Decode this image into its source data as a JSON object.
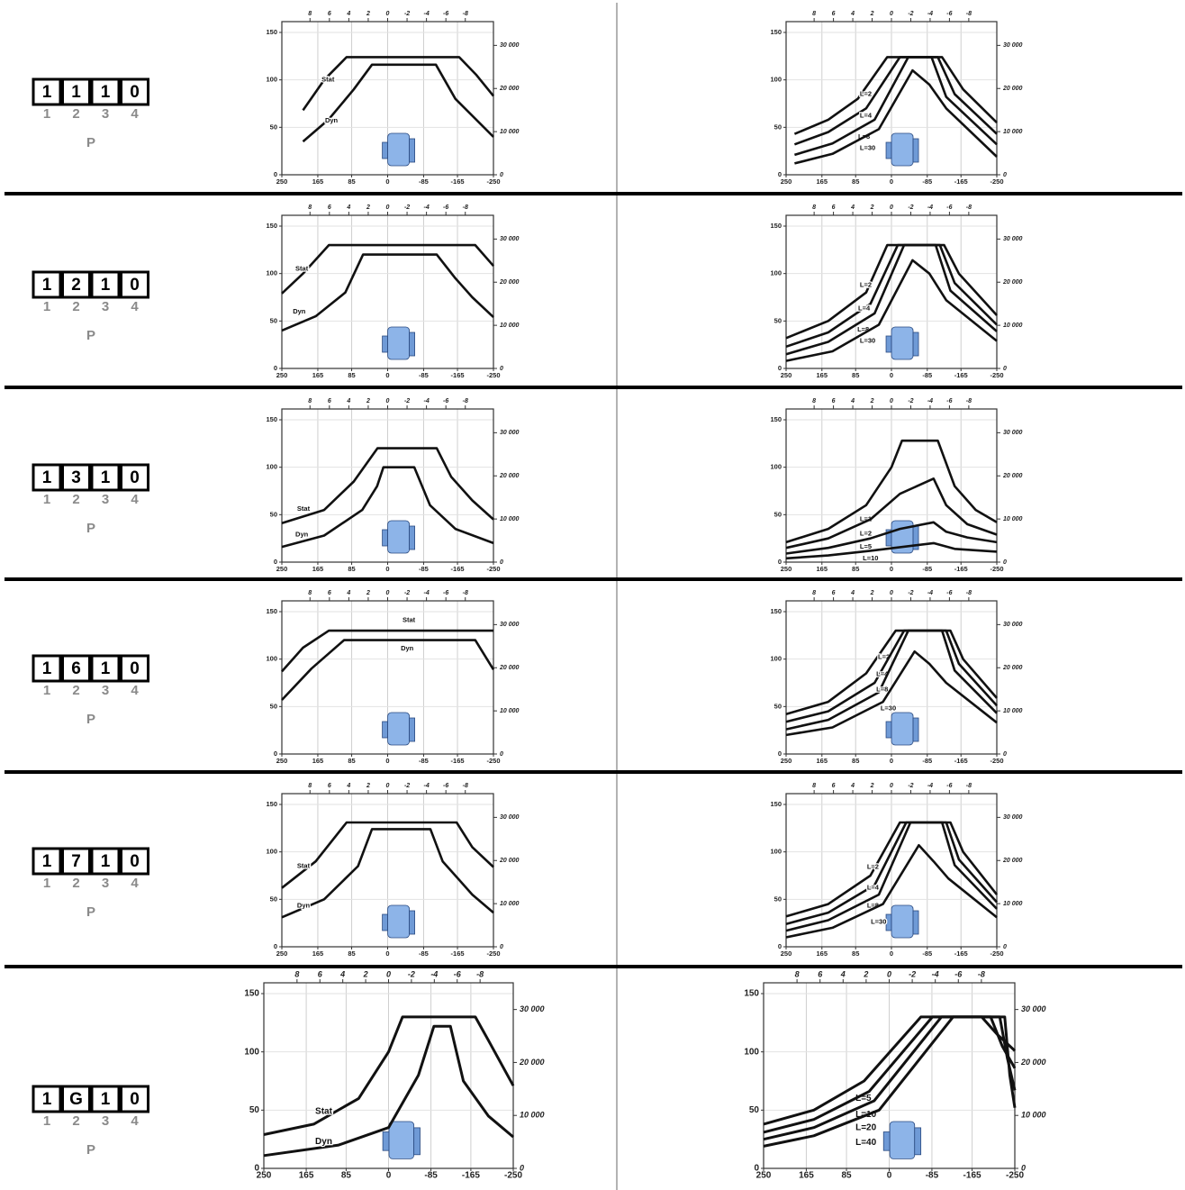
{
  "axes": {
    "xlim": [
      250,
      -250
    ],
    "xticks": [
      250,
      165,
      85,
      0,
      -85,
      -165,
      -250
    ],
    "x2lim": [
      10.9,
      -10.9
    ],
    "x2ticks": [
      8,
      6,
      4,
      2,
      0,
      -2,
      -4,
      -6,
      -8
    ],
    "ylim": [
      0,
      150
    ],
    "yticks": [
      0,
      50,
      100,
      150
    ],
    "y2lim": [
      0,
      33000
    ],
    "y2ticks": [
      0,
      {
        "value": 10000,
        "label": "10 000"
      },
      {
        "value": 20000,
        "label": "20 000"
      },
      {
        "value": 30000,
        "label": "30 000"
      }
    ],
    "grid": true
  },
  "positions": [
    "1",
    "2",
    "3",
    "4"
  ],
  "rows": [
    {
      "code": [
        "1",
        "1",
        "1",
        "0"
      ],
      "p": "P",
      "charts": [
        {
          "type": "line",
          "series": [
            {
              "name": "Stat",
              "color": "#111111",
              "x": [
                200,
                150,
                97,
                -169,
                -210,
                -250
              ],
              "values": [
                68,
                100,
                124,
                124,
                105,
                83
              ]
            },
            {
              "name": "Dyn",
              "color": "#111111",
              "x": [
                200,
                140,
                80,
                37,
                -114,
                -160,
                -250
              ],
              "values": [
                35,
                58,
                90,
                116,
                116,
                80,
                40
              ]
            }
          ]
        },
        {
          "type": "line",
          "series": [
            {
              "name": "L=2",
              "color": "#111111",
              "x": [
                230,
                150,
                80,
                10,
                -120,
                -170,
                -250
              ],
              "values": [
                43,
                58,
                80,
                124,
                124,
                90,
                55
              ]
            },
            {
              "name": "L=4",
              "color": "#111111",
              "x": [
                230,
                150,
                60,
                -20,
                -110,
                -150,
                -250
              ],
              "values": [
                32,
                45,
                70,
                124,
                124,
                85,
                43
              ]
            },
            {
              "name": "L=8",
              "color": "#111111",
              "x": [
                230,
                140,
                40,
                -40,
                -95,
                -130,
                -250
              ],
              "values": [
                21,
                33,
                58,
                124,
                124,
                82,
                32
              ]
            },
            {
              "name": "L=30",
              "color": "#111111",
              "x": [
                230,
                140,
                30,
                -50,
                -90,
                -130,
                -250
              ],
              "values": [
                12,
                22,
                48,
                110,
                95,
                70,
                19
              ]
            }
          ]
        }
      ]
    },
    {
      "code": [
        "1",
        "2",
        "1",
        "0"
      ],
      "p": "P",
      "charts": [
        {
          "type": "line",
          "series": [
            {
              "name": "Stat",
              "color": "#111111",
              "x": [
                250,
                200,
                139,
                -207,
                -250
              ],
              "values": [
                79,
                100,
                130,
                130,
                108
              ]
            },
            {
              "name": "Dyn",
              "color": "#111111",
              "x": [
                250,
                170,
                100,
                58,
                -116,
                -160,
                -200,
                -250
              ],
              "values": [
                40,
                55,
                80,
                120,
                120,
                95,
                75,
                54
              ]
            }
          ]
        },
        {
          "type": "line",
          "series": [
            {
              "name": "L=2",
              "color": "#111111",
              "x": [
                250,
                150,
                60,
                10,
                -125,
                -160,
                -250
              ],
              "values": [
                32,
                50,
                80,
                130,
                130,
                100,
                56
              ]
            },
            {
              "name": "L=4",
              "color": "#111111",
              "x": [
                250,
                150,
                50,
                -15,
                -115,
                -150,
                -250
              ],
              "values": [
                23,
                38,
                68,
                130,
                130,
                90,
                46
              ]
            },
            {
              "name": "L=8",
              "color": "#111111",
              "x": [
                250,
                150,
                40,
                -30,
                -105,
                -140,
                -250
              ],
              "values": [
                15,
                28,
                58,
                130,
                130,
                82,
                39
              ]
            },
            {
              "name": "L=30",
              "color": "#111111",
              "x": [
                250,
                140,
                30,
                -50,
                -90,
                -130,
                -250
              ],
              "values": [
                8,
                18,
                46,
                114,
                100,
                72,
                29
              ]
            }
          ]
        }
      ]
    },
    {
      "code": [
        "1",
        "3",
        "1",
        "0"
      ],
      "p": "P",
      "charts": [
        {
          "type": "line",
          "series": [
            {
              "name": "Stat",
              "color": "#111111",
              "x": [
                250,
                150,
                80,
                24,
                -116,
                -150,
                -200,
                -250
              ],
              "values": [
                41,
                55,
                85,
                120,
                120,
                90,
                65,
                45
              ]
            },
            {
              "name": "Dyn",
              "color": "#111111",
              "x": [
                250,
                150,
                60,
                25,
                10,
                -63,
                -100,
                -160,
                -250
              ],
              "values": [
                16,
                28,
                55,
                80,
                100,
                100,
                60,
                35,
                20
              ]
            }
          ]
        },
        {
          "type": "line",
          "series": [
            {
              "name": "L=1",
              "color": "#111111",
              "x": [
                250,
                150,
                60,
                0,
                -25,
                -110,
                -150,
                -200,
                -250
              ],
              "values": [
                21,
                35,
                60,
                100,
                128,
                128,
                80,
                55,
                42
              ]
            },
            {
              "name": "L=2",
              "color": "#111111",
              "x": [
                250,
                150,
                50,
                -20,
                -100,
                -130,
                -180,
                -250
              ],
              "values": [
                15,
                25,
                45,
                72,
                88,
                60,
                40,
                29
              ]
            },
            {
              "name": "L=5",
              "color": "#111111",
              "x": [
                250,
                150,
                50,
                -20,
                -100,
                -130,
                -180,
                -250
              ],
              "values": [
                9,
                15,
                25,
                35,
                42,
                32,
                26,
                21
              ]
            },
            {
              "name": "L=10",
              "color": "#111111",
              "x": [
                250,
                150,
                50,
                -100,
                -150,
                -250
              ],
              "values": [
                4,
                7,
                12,
                20,
                14,
                11
              ]
            }
          ]
        }
      ]
    },
    {
      "code": [
        "1",
        "6",
        "1",
        "0"
      ],
      "p": "P",
      "charts": [
        {
          "type": "line",
          "series": [
            {
              "name": "Stat",
              "color": "#111111",
              "x": [
                250,
                200,
                139,
                -250
              ],
              "values": [
                87,
                112,
                130,
                130
              ]
            },
            {
              "name": "Dyn",
              "color": "#111111",
              "x": [
                250,
                180,
                103,
                -207,
                -250
              ],
              "values": [
                57,
                90,
                120,
                120,
                89
              ]
            }
          ]
        },
        {
          "type": "line",
          "series": [
            {
              "name": "L=2",
              "color": "#111111",
              "x": [
                250,
                150,
                60,
                -10,
                -140,
                -170,
                -250
              ],
              "values": [
                42,
                55,
                85,
                130,
                130,
                100,
                59
              ]
            },
            {
              "name": "L=4",
              "color": "#111111",
              "x": [
                250,
                150,
                40,
                -30,
                -130,
                -160,
                -250
              ],
              "values": [
                34,
                45,
                75,
                130,
                130,
                95,
                51
              ]
            },
            {
              "name": "L=8",
              "color": "#111111",
              "x": [
                250,
                150,
                30,
                -40,
                -120,
                -150,
                -250
              ],
              "values": [
                26,
                36,
                65,
                130,
                130,
                88,
                43
              ]
            },
            {
              "name": "L=30",
              "color": "#111111",
              "x": [
                250,
                140,
                20,
                -55,
                -90,
                -130,
                -250
              ],
              "values": [
                20,
                28,
                55,
                108,
                95,
                75,
                33
              ]
            }
          ]
        }
      ]
    },
    {
      "code": [
        "1",
        "7",
        "1",
        "0"
      ],
      "p": "P",
      "charts": [
        {
          "type": "line",
          "series": [
            {
              "name": "Stat",
              "color": "#111111",
              "x": [
                250,
                170,
                97,
                -163,
                -200,
                -250
              ],
              "values": [
                62,
                90,
                131,
                131,
                105,
                84
              ]
            },
            {
              "name": "Dyn",
              "color": "#111111",
              "x": [
                250,
                150,
                70,
                37,
                -101,
                -130,
                -200,
                -250
              ],
              "values": [
                31,
                50,
                85,
                124,
                124,
                90,
                55,
                36
              ]
            }
          ]
        },
        {
          "type": "line",
          "series": [
            {
              "name": "L=2",
              "color": "#111111",
              "x": [
                250,
                150,
                50,
                -20,
                -140,
                -170,
                -250
              ],
              "values": [
                32,
                45,
                75,
                131,
                131,
                100,
                55
              ]
            },
            {
              "name": "L=4",
              "color": "#111111",
              "x": [
                250,
                150,
                40,
                -35,
                -130,
                -160,
                -250
              ],
              "values": [
                24,
                36,
                65,
                131,
                131,
                92,
                47
              ]
            },
            {
              "name": "L=8",
              "color": "#111111",
              "x": [
                250,
                150,
                30,
                -45,
                -120,
                -150,
                -250
              ],
              "values": [
                17,
                28,
                55,
                131,
                131,
                86,
                40
              ]
            },
            {
              "name": "L=30",
              "color": "#111111",
              "x": [
                250,
                140,
                20,
                -65,
                -100,
                -135,
                -250
              ],
              "values": [
                10,
                20,
                45,
                107,
                90,
                72,
                31
              ]
            }
          ]
        }
      ]
    },
    {
      "code": [
        "1",
        "G",
        "1",
        "0"
      ],
      "p": "P",
      "charts": [
        {
          "type": "line",
          "series": [
            {
              "name": "Stat",
              "color": "#111111",
              "x": [
                250,
                150,
                60,
                0,
                -28,
                -174,
                -200,
                -250
              ],
              "values": [
                29,
                38,
                60,
                100,
                130,
                130,
                110,
                71
              ]
            },
            {
              "name": "Dyn",
              "color": "#111111",
              "x": [
                250,
                100,
                0,
                -60,
                -91,
                -124,
                -150,
                -200,
                -250
              ],
              "values": [
                11,
                20,
                35,
                80,
                122,
                122,
                75,
                45,
                27
              ]
            }
          ]
        },
        {
          "type": "line",
          "series": [
            {
              "name": "L=5",
              "color": "#111111",
              "x": [
                250,
                150,
                50,
                -63,
                -184,
                -215,
                -250
              ],
              "values": [
                38,
                50,
                75,
                130,
                130,
                115,
                101
              ]
            },
            {
              "name": "L=10",
              "color": "#111111",
              "x": [
                250,
                150,
                40,
                -86,
                -202,
                -225,
                -250
              ],
              "values": [
                31,
                42,
                66,
                130,
                130,
                105,
                86
              ]
            },
            {
              "name": "L=20",
              "color": "#111111",
              "x": [
                250,
                150,
                30,
                -104,
                -220,
                -235,
                -250
              ],
              "values": [
                25,
                35,
                58,
                130,
                130,
                95,
                67
              ]
            },
            {
              "name": "L=40",
              "color": "#111111",
              "x": [
                250,
                150,
                20,
                -127,
                -230,
                -240,
                -250
              ],
              "values": [
                19,
                28,
                50,
                130,
                130,
                80,
                52
              ]
            }
          ]
        }
      ]
    }
  ]
}
